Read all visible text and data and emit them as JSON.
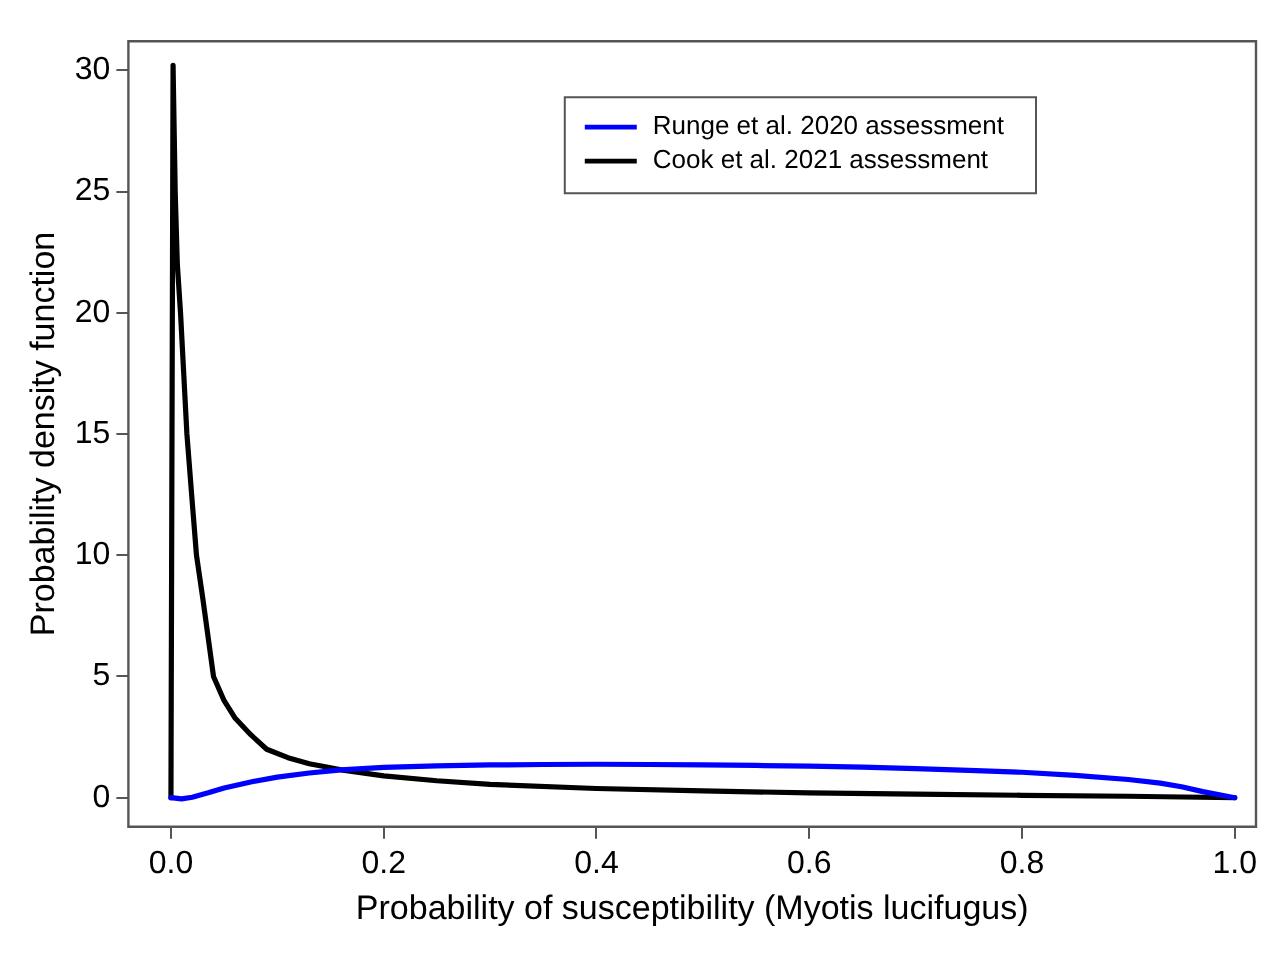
{
  "chart_data": {
    "type": "line",
    "xlabel": "Probability of susceptibility (Myotis lucifugus)",
    "ylabel": "Probability density function",
    "series": [
      {
        "name": "Runge et al. 2020 assessment",
        "color": "#0000ff",
        "x": [
          0,
          0.01,
          0.02,
          0.035,
          0.05,
          0.075,
          0.1,
          0.13,
          0.16,
          0.2,
          0.25,
          0.3,
          0.35,
          0.4,
          0.45,
          0.5,
          0.55,
          0.6,
          0.65,
          0.7,
          0.75,
          0.8,
          0.85,
          0.9,
          0.93,
          0.95,
          0.97,
          1.0
        ],
        "values": [
          0,
          -0.05,
          0.02,
          0.2,
          0.4,
          0.65,
          0.85,
          1.02,
          1.15,
          1.25,
          1.31,
          1.35,
          1.37,
          1.38,
          1.37,
          1.35,
          1.33,
          1.3,
          1.26,
          1.2,
          1.13,
          1.05,
          0.92,
          0.75,
          0.6,
          0.45,
          0.25,
          0
        ]
      },
      {
        "name": "Cook et al. 2021 assessment",
        "color": "#000000",
        "x": [
          0,
          0.002,
          0.004,
          0.006,
          0.009,
          0.012,
          0.015,
          0.02,
          0.024,
          0.03,
          0.04,
          0.05,
          0.06,
          0.075,
          0.09,
          0.11,
          0.13,
          0.16,
          0.2,
          0.25,
          0.3,
          0.4,
          0.5,
          0.6,
          0.7,
          0.8,
          0.9,
          0.95,
          1.0
        ],
        "values": [
          0,
          30.2,
          25,
          22,
          20,
          17.5,
          15,
          12.2,
          10,
          8.2,
          5,
          4,
          3.3,
          2.6,
          2,
          1.65,
          1.4,
          1.15,
          0.9,
          0.7,
          0.55,
          0.38,
          0.28,
          0.2,
          0.15,
          0.1,
          0.06,
          0.03,
          0
        ]
      }
    ],
    "xlim": [
      -0.04,
      1.02
    ],
    "ylim": [
      -1.2,
      31.2
    ],
    "xticks": [
      {
        "value": 0,
        "label": "0.0"
      },
      {
        "value": 0.2,
        "label": "0.2"
      },
      {
        "value": 0.4,
        "label": "0.4"
      },
      {
        "value": 0.6,
        "label": "0.6"
      },
      {
        "value": 0.8,
        "label": "0.8"
      },
      {
        "value": 1,
        "label": "1.0"
      }
    ],
    "yticks": [
      0,
      5,
      10,
      15,
      20,
      25,
      30
    ],
    "legend": "top right",
    "grid": false,
    "marker": "none",
    "line_style": "solid"
  }
}
